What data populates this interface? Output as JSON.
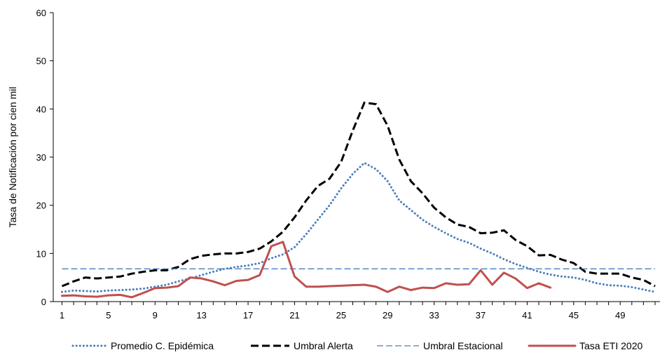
{
  "chart_data": {
    "type": "line",
    "title": "",
    "xlabel": "",
    "ylabel": "Tasa de Notificación por cien mil",
    "ylim": [
      0,
      60
    ],
    "yticks": [
      0,
      10,
      20,
      30,
      40,
      50,
      60
    ],
    "xlim": [
      1,
      52
    ],
    "xtick_labels": [
      "1",
      "5",
      "9",
      "13",
      "17",
      "21",
      "25",
      "29",
      "33",
      "37",
      "41",
      "45",
      "49"
    ],
    "grid": false,
    "legend_position": "bottom",
    "series": [
      {
        "name": "Promedio  C. Epidémica",
        "color": "#4a7ebb",
        "style": "dotted",
        "x": [
          1,
          2,
          3,
          4,
          5,
          6,
          7,
          8,
          9,
          10,
          11,
          12,
          13,
          14,
          15,
          16,
          17,
          18,
          19,
          20,
          21,
          22,
          23,
          24,
          25,
          26,
          27,
          28,
          29,
          30,
          31,
          32,
          33,
          34,
          35,
          36,
          37,
          38,
          39,
          40,
          41,
          42,
          43,
          44,
          45,
          46,
          47,
          48,
          49,
          50,
          51,
          52
        ],
        "values": [
          2.0,
          2.3,
          2.2,
          2.1,
          2.3,
          2.4,
          2.5,
          2.7,
          3.1,
          3.5,
          4.2,
          4.8,
          5.5,
          6.2,
          6.8,
          7.2,
          7.5,
          8.0,
          9.0,
          9.8,
          11.3,
          14.0,
          17.0,
          20.0,
          23.5,
          26.5,
          28.8,
          27.5,
          25.0,
          21.0,
          19.0,
          17.0,
          15.5,
          14.2,
          13.0,
          12.2,
          11.0,
          10.0,
          8.8,
          7.8,
          7.0,
          6.2,
          5.6,
          5.2,
          5.0,
          4.5,
          3.8,
          3.4,
          3.3,
          3.0,
          2.5,
          2.0
        ]
      },
      {
        "name": "Umbral Alerta",
        "color": "#000000",
        "style": "dashed",
        "x": [
          1,
          2,
          3,
          4,
          5,
          6,
          7,
          8,
          9,
          10,
          11,
          12,
          13,
          14,
          15,
          16,
          17,
          18,
          19,
          20,
          21,
          22,
          23,
          24,
          25,
          26,
          27,
          28,
          29,
          30,
          31,
          32,
          33,
          34,
          35,
          36,
          37,
          38,
          39,
          40,
          41,
          42,
          43,
          44,
          45,
          46,
          47,
          48,
          49,
          50,
          51,
          52
        ],
        "values": [
          3.2,
          4.2,
          5.0,
          4.8,
          5.0,
          5.2,
          5.8,
          6.2,
          6.5,
          6.5,
          7.2,
          8.8,
          9.5,
          9.8,
          10.0,
          10.0,
          10.3,
          11.0,
          12.5,
          14.5,
          17.5,
          21.0,
          24.0,
          25.5,
          29.0,
          35.5,
          41.3,
          41.0,
          36.5,
          29.5,
          25.0,
          22.5,
          19.5,
          17.5,
          16.0,
          15.5,
          14.2,
          14.3,
          14.8,
          12.8,
          11.5,
          9.6,
          9.7,
          8.7,
          8.0,
          6.2,
          5.8,
          5.8,
          5.8,
          5.0,
          4.5,
          3.2
        ]
      },
      {
        "name": "Umbral Estacional",
        "color": "#4a7ebb",
        "style": "dashed-thin",
        "x": [
          1,
          52
        ],
        "values": [
          6.8,
          6.8
        ]
      },
      {
        "name": "Tasa ETI  2020",
        "color": "#c0504d",
        "style": "solid",
        "x": [
          1,
          2,
          3,
          4,
          5,
          6,
          7,
          8,
          9,
          10,
          11,
          12,
          13,
          14,
          15,
          16,
          17,
          18,
          19,
          20,
          21,
          22,
          23,
          24,
          25,
          26,
          27,
          28,
          29,
          30,
          31,
          32,
          33,
          34,
          35,
          36,
          37,
          38,
          39,
          40,
          41,
          42,
          43
        ],
        "values": [
          1.2,
          1.3,
          1.1,
          1.0,
          1.3,
          1.4,
          0.9,
          1.8,
          2.8,
          2.9,
          3.2,
          5.0,
          4.8,
          4.2,
          3.4,
          4.3,
          4.5,
          5.5,
          11.5,
          12.4,
          5.2,
          3.1,
          3.1,
          3.2,
          3.3,
          3.4,
          3.5,
          3.1,
          2.0,
          3.1,
          2.4,
          2.9,
          2.8,
          3.8,
          3.5,
          3.6,
          6.5,
          3.5,
          6.0,
          4.8,
          2.8,
          3.8,
          2.9
        ]
      }
    ]
  }
}
